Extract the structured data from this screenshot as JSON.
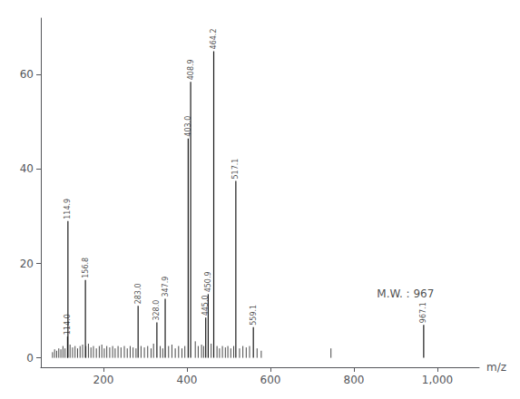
{
  "chart_data": {
    "type": "stem",
    "xlabel": "m/z",
    "xlim": [
      50,
      1100
    ],
    "ylim": [
      -2,
      72
    ],
    "xticks": [
      200,
      400,
      600,
      800,
      1000
    ],
    "yticks": [
      0,
      20,
      40,
      60
    ],
    "grid": false,
    "series": [
      {
        "color": "#1a1a1a",
        "x": [
          78,
          83,
          88,
          93,
          98,
          103,
          108,
          120,
          126,
          132,
          138,
          144,
          150,
          158,
          164,
          170,
          176,
          183,
          190,
          196,
          202,
          208,
          215,
          222,
          228,
          235,
          242,
          250,
          257,
          264,
          271,
          278,
          290,
          298,
          306,
          314,
          320,
          336,
          342,
          356,
          364,
          372,
          380,
          388,
          395,
          420,
          427,
          435,
          440,
          458,
          472,
          478,
          485,
          492,
          498,
          505,
          512,
          526,
          534,
          542,
          550,
          568,
          578,
          745
        ],
        "values": [
          1.2,
          1.8,
          1.5,
          2.0,
          1.8,
          2.5,
          2.0,
          2.8,
          2.2,
          2.5,
          2.0,
          2.5,
          2.8,
          2.5,
          3.0,
          2.2,
          2.5,
          2.0,
          2.5,
          2.8,
          2.0,
          2.5,
          2.2,
          2.5,
          2.0,
          2.5,
          2.2,
          2.5,
          2.0,
          2.5,
          2.2,
          2.0,
          2.5,
          2.2,
          2.5,
          2.0,
          3.0,
          2.5,
          2.0,
          2.5,
          2.8,
          2.0,
          2.5,
          2.0,
          2.5,
          3.5,
          2.5,
          2.8,
          2.5,
          3.0,
          2.5,
          2.0,
          2.5,
          2.2,
          2.5,
          2.0,
          2.5,
          2.0,
          2.5,
          2.2,
          2.5,
          2.0,
          1.5,
          2.0
        ]
      },
      {
        "color": "#1a1a1a",
        "x": [
          114.0,
          114.9,
          156.8,
          283.0,
          328.0,
          347.9,
          403.0,
          408.9,
          445.0,
          450.9,
          464.2,
          517.1,
          559.1,
          967.1
        ],
        "values": [
          4.5,
          29.0,
          16.5,
          11.0,
          7.5,
          12.5,
          46.5,
          58.5,
          8.5,
          13.5,
          65.0,
          37.5,
          6.5,
          7.0
        ],
        "labels": [
          "114.0",
          "114.9",
          "156.8",
          "283.0",
          "328.0",
          "347.9",
          "403.0",
          "408.9",
          "445.0",
          "450.9",
          "464.2",
          "517.1",
          "559.1",
          "967.1"
        ]
      }
    ],
    "annotations": [
      {
        "text": "M.W. : 967",
        "x": 855,
        "y": 13.5,
        "color": "#1a1a1a"
      }
    ]
  }
}
